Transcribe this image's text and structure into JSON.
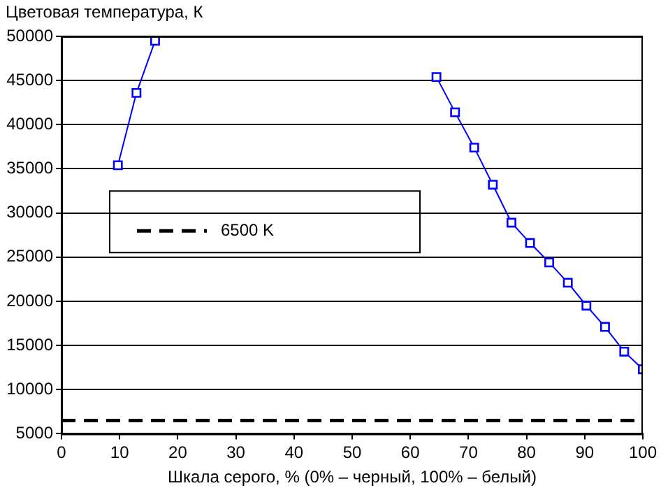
{
  "chart_data": {
    "type": "line",
    "ylabel": "Цветовая температура, К",
    "xlabel": "Шкала серого, % (0% – черный, 100% – белый)",
    "x": [
      9.7,
      12.9,
      16.1,
      61.3,
      64.5,
      67.7,
      71.0,
      74.2,
      77.4,
      80.6,
      83.9,
      87.1,
      90.3,
      93.5,
      96.8,
      100
    ],
    "series": [
      {
        "color": "#0000ff",
        "values": [
          35400,
          43600,
          49500,
          null,
          45400,
          41400,
          37400,
          33200,
          28900,
          26600,
          24400,
          22100,
          19500,
          17100,
          14300,
          12300
        ]
      }
    ],
    "marker": "square",
    "xlim": [
      0,
      100
    ],
    "xticks": [
      0,
      10,
      20,
      30,
      40,
      50,
      60,
      70,
      80,
      90,
      100
    ],
    "ylim": [
      5000,
      50000
    ],
    "yticks": [
      5000,
      10000,
      15000,
      20000,
      25000,
      30000,
      35000,
      40000,
      45000,
      50000
    ],
    "grid": "y",
    "legend": "left",
    "ref_lines": [
      {
        "axis": "y",
        "value": 6500,
        "label": "6500 K",
        "color": "#000000",
        "line_style": "dashed"
      }
    ]
  }
}
